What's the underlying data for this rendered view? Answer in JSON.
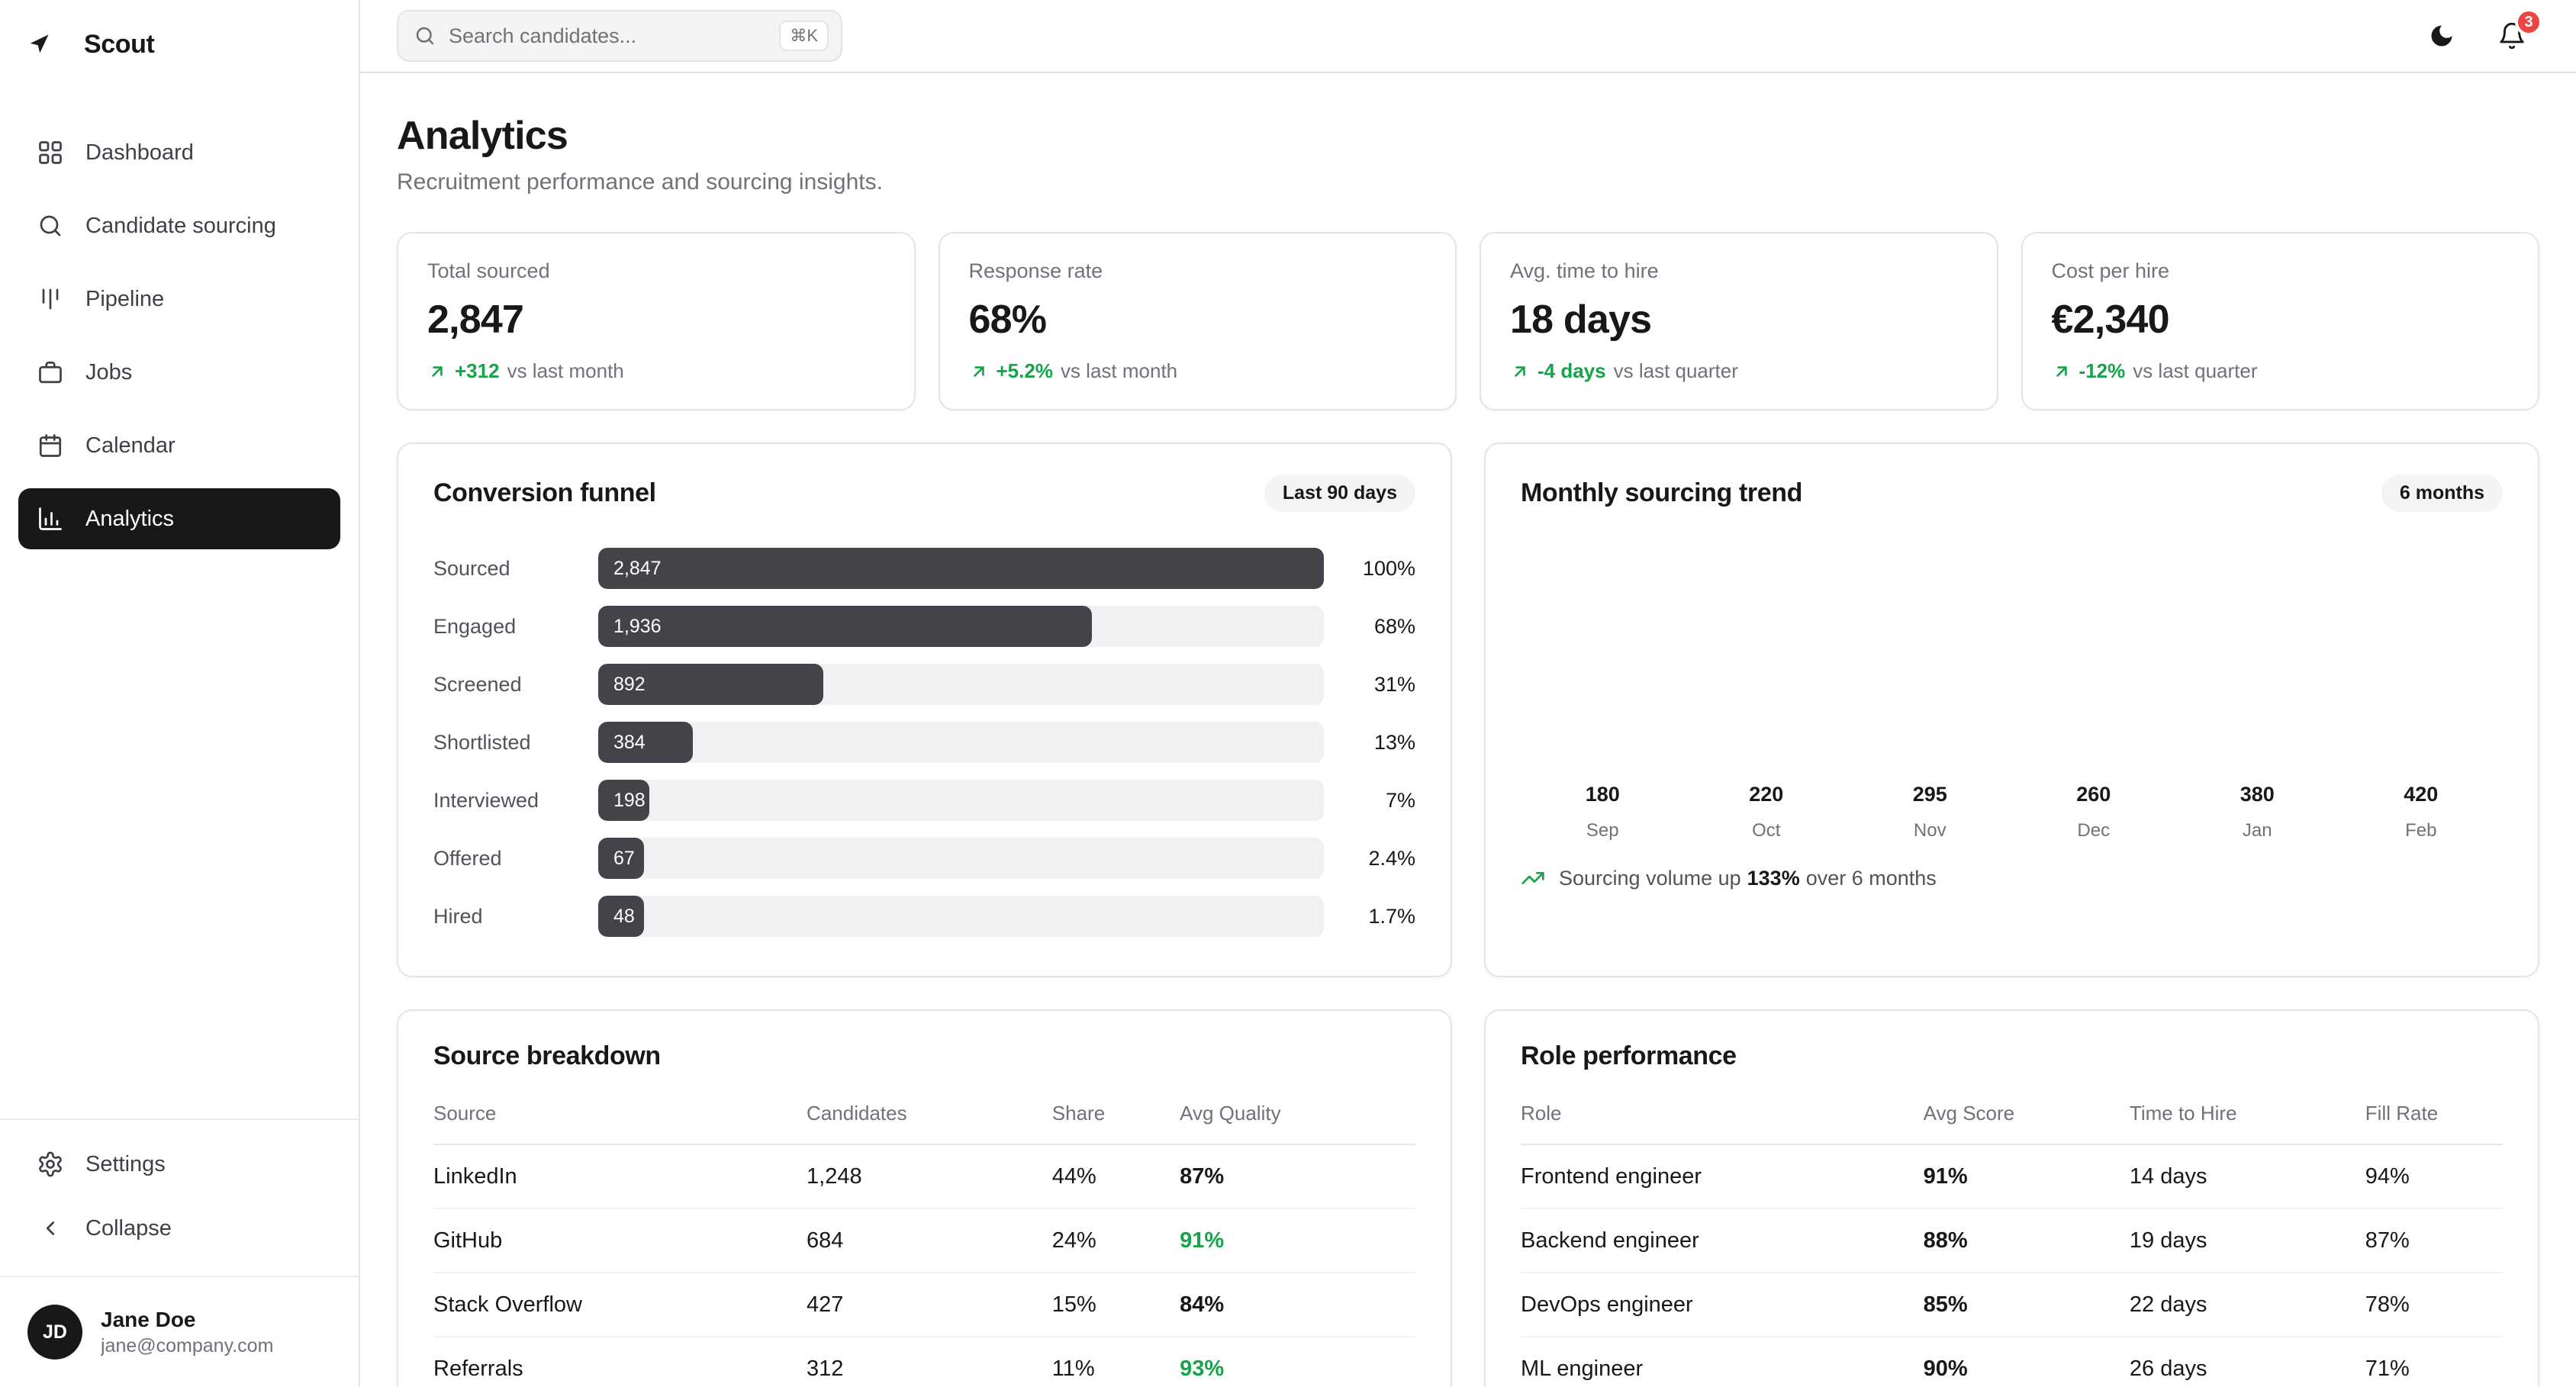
{
  "app": {
    "name": "Scout"
  },
  "topbar": {
    "search_placeholder": "Search candidates...",
    "search_shortcut": "⌘K",
    "notification_count": "3"
  },
  "sidebar": {
    "items": [
      {
        "label": "Dashboard"
      },
      {
        "label": "Candidate sourcing"
      },
      {
        "label": "Pipeline"
      },
      {
        "label": "Jobs"
      },
      {
        "label": "Calendar"
      },
      {
        "label": "Analytics"
      }
    ],
    "settings_label": "Settings",
    "collapse_label": "Collapse",
    "user": {
      "initials": "JD",
      "name": "Jane Doe",
      "email": "jane@company.com"
    }
  },
  "page": {
    "title": "Analytics",
    "subtitle": "Recruitment performance and sourcing insights."
  },
  "stats": [
    {
      "label": "Total sourced",
      "value": "2,847",
      "delta": "+312",
      "note": "vs last month"
    },
    {
      "label": "Response rate",
      "value": "68%",
      "delta": "+5.2%",
      "note": "vs last month"
    },
    {
      "label": "Avg. time to hire",
      "value": "18 days",
      "delta": "-4 days",
      "note": "vs last quarter"
    },
    {
      "label": "Cost per hire",
      "value": "€2,340",
      "delta": "-12%",
      "note": "vs last quarter"
    }
  ],
  "funnel": {
    "title": "Conversion funnel",
    "badge": "Last 90 days",
    "stages": [
      {
        "label": "Sourced",
        "value": "2,847",
        "pct": "100%",
        "width": 100
      },
      {
        "label": "Engaged",
        "value": "1,936",
        "pct": "68%",
        "width": 68
      },
      {
        "label": "Screened",
        "value": "892",
        "pct": "31%",
        "width": 31
      },
      {
        "label": "Shortlisted",
        "value": "384",
        "pct": "13%",
        "width": 13
      },
      {
        "label": "Interviewed",
        "value": "198",
        "pct": "7%",
        "width": 7
      },
      {
        "label": "Offered",
        "value": "67",
        "pct": "2.4%",
        "width": 2.4
      },
      {
        "label": "Hired",
        "value": "48",
        "pct": "1.7%",
        "width": 1.7
      }
    ]
  },
  "trend": {
    "title": "Monthly sourcing trend",
    "badge": "6 months",
    "insight": {
      "prefix": "Sourcing volume up",
      "value": "133%",
      "suffix": "over 6 months"
    },
    "chart_data": {
      "type": "bar",
      "title": "Monthly sourcing trend",
      "categories": [
        "Sep",
        "Oct",
        "Nov",
        "Dec",
        "Jan",
        "Feb"
      ],
      "values": [
        180,
        220,
        295,
        260,
        380,
        420
      ],
      "value_labels": true,
      "legend": false
    }
  },
  "sources": {
    "title": "Source breakdown",
    "columns": [
      "Source",
      "Candidates",
      "Share",
      "Avg Quality"
    ],
    "rows": [
      {
        "source": "LinkedIn",
        "candidates": "1,248",
        "share": "44%",
        "quality": "87%",
        "quality_color": "#18181b"
      },
      {
        "source": "GitHub",
        "candidates": "684",
        "share": "24%",
        "quality": "91%",
        "quality_color": "#16a34a"
      },
      {
        "source": "Stack Overflow",
        "candidates": "427",
        "share": "15%",
        "quality": "84%",
        "quality_color": "#18181b"
      },
      {
        "source": "Referrals",
        "candidates": "312",
        "share": "11%",
        "quality": "93%",
        "quality_color": "#16a34a"
      }
    ]
  },
  "roles": {
    "title": "Role performance",
    "columns": [
      "Role",
      "Avg Score",
      "Time to Hire",
      "Fill Rate"
    ],
    "rows": [
      {
        "role": "Frontend engineer",
        "score": "91%",
        "time": "14 days",
        "fill": "94%"
      },
      {
        "role": "Backend engineer",
        "score": "88%",
        "time": "19 days",
        "fill": "87%"
      },
      {
        "role": "DevOps engineer",
        "score": "85%",
        "time": "22 days",
        "fill": "78%"
      },
      {
        "role": "ML engineer",
        "score": "90%",
        "time": "26 days",
        "fill": "71%"
      }
    ]
  },
  "colors": {
    "accent_green": "#16a34a",
    "badge_red": "#ef4444",
    "funnel_bar": "#43434a",
    "active_nav": "#18181b"
  }
}
